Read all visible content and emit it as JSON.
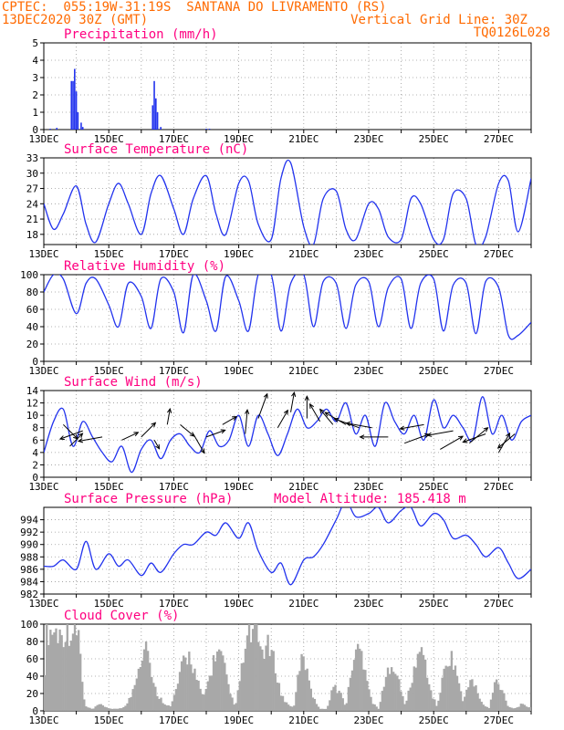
{
  "header": {
    "line1": "CPTEC:  055:19W-31:19S  SANTANA DO LIVRAMENTO (RS)",
    "line2_left": "13DEC2020 30Z (GMT)",
    "line2_right": "Vertical Grid Line: 30Z",
    "line3_right": "TQ0126L028"
  },
  "x_categories": [
    "13DEC",
    "15DEC",
    "17DEC",
    "19DEC",
    "21DEC",
    "23DEC",
    "25DEC",
    "27DEC"
  ],
  "x_range_days": [
    0,
    15
  ],
  "colors": {
    "header": "#ff6a00",
    "title": "#ff0080",
    "line": "#2233ee",
    "cloud": "#a8a8a8",
    "grid": "#9a9a9a"
  },
  "chart_data": [
    {
      "id": "precip",
      "type": "bar",
      "title": "Precipitation (mm/h)",
      "ylim": [
        0,
        5
      ],
      "yticks": [
        0,
        1,
        2,
        3,
        4,
        5
      ],
      "x_day": [
        0.2,
        0.4,
        0.85,
        0.9,
        0.95,
        1.0,
        1.05,
        1.15,
        1.2,
        3.35,
        3.4,
        3.45,
        3.5,
        3.6,
        5.0,
        5.1
      ],
      "values": [
        0.05,
        0.1,
        2.8,
        2.8,
        3.5,
        2.2,
        1.0,
        0.4,
        0.15,
        1.4,
        2.8,
        1.8,
        1.0,
        0.15,
        0.05,
        0.05
      ]
    },
    {
      "id": "temp",
      "type": "line",
      "title": "Surface Temperature (nC)",
      "ylim": [
        16,
        33
      ],
      "yticks": [
        18,
        21,
        24,
        27,
        30,
        33
      ],
      "x_day": [
        0.0,
        0.3,
        0.6,
        1.0,
        1.3,
        1.6,
        2.0,
        2.3,
        2.6,
        3.0,
        3.3,
        3.6,
        4.0,
        4.3,
        4.6,
        5.0,
        5.3,
        5.6,
        6.0,
        6.3,
        6.6,
        7.0,
        7.3,
        7.6,
        8.0,
        8.3,
        8.6,
        9.0,
        9.3,
        9.6,
        10.0,
        10.3,
        10.6,
        11.0,
        11.3,
        11.6,
        12.0,
        12.3,
        12.6,
        13.0,
        13.3,
        13.6,
        14.0,
        14.3,
        14.6,
        15.0
      ],
      "values": [
        24.0,
        19.0,
        22.0,
        27.5,
        20.0,
        16.5,
        24.0,
        28.0,
        24.0,
        18.0,
        26.0,
        29.5,
        23.0,
        18.0,
        25.0,
        29.5,
        22.0,
        18.0,
        28.0,
        28.5,
        20.0,
        17.0,
        29.0,
        32.0,
        19.5,
        16.0,
        25.0,
        26.5,
        19.0,
        17.0,
        24.0,
        23.0,
        17.5,
        17.0,
        25.0,
        24.0,
        17.0,
        17.0,
        26.0,
        25.0,
        16.0,
        17.5,
        28.0,
        28.5,
        18.5,
        29.0
      ]
    },
    {
      "id": "rh",
      "type": "line",
      "title": "Relative Humidity (%)",
      "ylim": [
        0,
        100
      ],
      "yticks": [
        0,
        20,
        40,
        60,
        80,
        100
      ],
      "x_day": [
        0.0,
        0.3,
        0.6,
        1.0,
        1.3,
        1.6,
        2.0,
        2.3,
        2.6,
        3.0,
        3.3,
        3.6,
        4.0,
        4.3,
        4.6,
        5.0,
        5.3,
        5.6,
        6.0,
        6.3,
        6.6,
        7.0,
        7.3,
        7.6,
        8.0,
        8.3,
        8.6,
        9.0,
        9.3,
        9.6,
        10.0,
        10.3,
        10.6,
        11.0,
        11.3,
        11.6,
        12.0,
        12.3,
        12.6,
        13.0,
        13.3,
        13.6,
        14.0,
        14.3,
        14.6,
        15.0
      ],
      "values": [
        80.0,
        100.0,
        95.0,
        55.0,
        90.0,
        95.0,
        65.0,
        40.0,
        90.0,
        75.0,
        38.0,
        95.0,
        80.0,
        33.0,
        100.0,
        70.0,
        35.0,
        98.0,
        70.0,
        35.0,
        100.0,
        100.0,
        35.0,
        90.0,
        100.0,
        40.0,
        92.0,
        90.0,
        38.0,
        88.0,
        92.0,
        40.0,
        85.0,
        95.0,
        38.0,
        90.0,
        95.0,
        35.0,
        88.0,
        90.0,
        32.0,
        92.0,
        85.0,
        30.0,
        30.0,
        45.0
      ]
    },
    {
      "id": "wind",
      "type": "line",
      "title": "Surface Wind (m/s)",
      "ylim": [
        0,
        14
      ],
      "yticks": [
        0,
        2,
        4,
        6,
        8,
        10,
        12,
        14
      ],
      "x_day": [
        0.0,
        0.3,
        0.6,
        0.9,
        1.2,
        1.5,
        1.8,
        2.1,
        2.4,
        2.7,
        3.0,
        3.3,
        3.6,
        3.9,
        4.2,
        4.5,
        4.8,
        5.1,
        5.4,
        5.7,
        6.0,
        6.3,
        6.6,
        6.9,
        7.2,
        7.5,
        7.8,
        8.1,
        8.4,
        8.7,
        9.0,
        9.3,
        9.6,
        9.9,
        10.2,
        10.5,
        10.8,
        11.1,
        11.4,
        11.7,
        12.0,
        12.3,
        12.6,
        12.9,
        13.2,
        13.5,
        13.8,
        14.1,
        14.4,
        14.7,
        15.0
      ],
      "values": [
        4.0,
        9.0,
        11.0,
        5.0,
        9.0,
        6.5,
        4.0,
        2.5,
        5.0,
        0.8,
        4.5,
        6.0,
        3.0,
        6.0,
        7.0,
        5.0,
        4.0,
        7.5,
        5.0,
        6.0,
        10.0,
        5.0,
        10.0,
        7.0,
        3.5,
        7.0,
        11.0,
        8.0,
        9.0,
        11.0,
        9.0,
        12.0,
        7.0,
        10.0,
        5.0,
        12.0,
        9.0,
        7.0,
        10.0,
        6.0,
        12.5,
        8.0,
        10.0,
        8.0,
        6.0,
        13.0,
        7.0,
        10.0,
        6.0,
        9.0,
        10.0
      ],
      "arrows": [
        {
          "x_day": 0.6,
          "y": 8.5,
          "dir_deg": 315,
          "len": 1.0
        },
        {
          "x_day": 0.8,
          "y": 5.0,
          "dir_deg": 45,
          "len": 0.9
        },
        {
          "x_day": 1.2,
          "y": 7.5,
          "dir_deg": 200,
          "len": 1.2
        },
        {
          "x_day": 1.8,
          "y": 6.5,
          "dir_deg": 190,
          "len": 1.2
        },
        {
          "x_day": 2.4,
          "y": 6.0,
          "dir_deg": 25,
          "len": 0.9
        },
        {
          "x_day": 3.0,
          "y": 6.5,
          "dir_deg": 45,
          "len": 1.0
        },
        {
          "x_day": 3.4,
          "y": 6.0,
          "dir_deg": 300,
          "len": 0.5
        },
        {
          "x_day": 3.8,
          "y": 8.5,
          "dir_deg": 80,
          "len": 0.8
        },
        {
          "x_day": 4.2,
          "y": 8.5,
          "dir_deg": 320,
          "len": 0.9
        },
        {
          "x_day": 4.6,
          "y": 7.0,
          "dir_deg": 300,
          "len": 1.1
        },
        {
          "x_day": 5.0,
          "y": 6.5,
          "dir_deg": 20,
          "len": 1.0
        },
        {
          "x_day": 5.5,
          "y": 8.5,
          "dir_deg": 30,
          "len": 0.8
        },
        {
          "x_day": 6.2,
          "y": 7.0,
          "dir_deg": 85,
          "len": 1.2
        },
        {
          "x_day": 6.6,
          "y": 9.5,
          "dir_deg": 70,
          "len": 1.3
        },
        {
          "x_day": 7.2,
          "y": 8.0,
          "dir_deg": 60,
          "len": 1.0
        },
        {
          "x_day": 7.6,
          "y": 10.5,
          "dir_deg": 80,
          "len": 1.0
        },
        {
          "x_day": 8.1,
          "y": 9.5,
          "dir_deg": 90,
          "len": 1.1
        },
        {
          "x_day": 8.5,
          "y": 9.0,
          "dir_deg": 120,
          "len": 1.0
        },
        {
          "x_day": 8.9,
          "y": 8.5,
          "dir_deg": 130,
          "len": 1.0
        },
        {
          "x_day": 9.3,
          "y": 8.5,
          "dir_deg": 150,
          "len": 1.2
        },
        {
          "x_day": 9.7,
          "y": 8.0,
          "dir_deg": 160,
          "len": 1.3
        },
        {
          "x_day": 10.1,
          "y": 8.0,
          "dir_deg": 170,
          "len": 1.3
        },
        {
          "x_day": 10.6,
          "y": 6.5,
          "dir_deg": 180,
          "len": 1.4
        },
        {
          "x_day": 11.1,
          "y": 5.5,
          "dir_deg": 20,
          "len": 1.3
        },
        {
          "x_day": 11.7,
          "y": 8.5,
          "dir_deg": 190,
          "len": 1.2
        },
        {
          "x_day": 12.2,
          "y": 4.5,
          "dir_deg": 30,
          "len": 1.3
        },
        {
          "x_day": 12.6,
          "y": 7.5,
          "dir_deg": 190,
          "len": 1.3
        },
        {
          "x_day": 13.1,
          "y": 5.5,
          "dir_deg": 40,
          "len": 1.2
        },
        {
          "x_day": 13.6,
          "y": 7.0,
          "dir_deg": 200,
          "len": 1.2
        },
        {
          "x_day": 14.0,
          "y": 4.0,
          "dir_deg": 60,
          "len": 1.1
        },
        {
          "x_day": 14.5,
          "y": 7.0,
          "dir_deg": 220,
          "len": 1.1
        }
      ]
    },
    {
      "id": "pres",
      "type": "line",
      "title": "Surface Pressure (hPa)",
      "annotation": "Model Altitude: 185.418  m",
      "ylim": [
        982,
        996
      ],
      "yticks": [
        982,
        984,
        986,
        988,
        990,
        992,
        994
      ],
      "x_day": [
        0.0,
        0.3,
        0.6,
        1.0,
        1.3,
        1.6,
        2.0,
        2.3,
        2.6,
        3.0,
        3.3,
        3.6,
        4.0,
        4.3,
        4.6,
        5.0,
        5.3,
        5.6,
        6.0,
        6.3,
        6.6,
        7.0,
        7.3,
        7.6,
        8.0,
        8.3,
        8.6,
        9.0,
        9.3,
        9.6,
        10.0,
        10.3,
        10.6,
        11.0,
        11.3,
        11.6,
        12.0,
        12.3,
        12.6,
        13.0,
        13.3,
        13.6,
        14.0,
        14.3,
        14.6,
        15.0
      ],
      "values": [
        986.5,
        986.5,
        987.5,
        986.0,
        990.5,
        986.0,
        988.5,
        986.5,
        987.5,
        985.0,
        987.0,
        985.5,
        988.5,
        990.0,
        990.0,
        992.0,
        991.5,
        993.5,
        991.0,
        993.5,
        989.0,
        985.5,
        987.0,
        983.5,
        987.5,
        988.0,
        990.0,
        994.0,
        997.0,
        994.5,
        995.0,
        996.0,
        993.5,
        995.5,
        996.0,
        993.0,
        995.0,
        994.0,
        991.0,
        991.5,
        990.0,
        988.0,
        989.5,
        987.0,
        984.5,
        986.0
      ]
    },
    {
      "id": "cloud",
      "type": "area",
      "title": "Cloud Cover (%)",
      "ylim": [
        0,
        100
      ],
      "yticks": [
        0,
        20,
        40,
        60,
        80,
        100
      ],
      "x_day": [
        0.0,
        0.05,
        0.1,
        0.3,
        0.5,
        0.8,
        1.1,
        1.2,
        1.3,
        1.5,
        1.7,
        1.9,
        2.1,
        2.3,
        2.5,
        2.7,
        2.9,
        3.1,
        3.2,
        3.3,
        3.5,
        3.7,
        3.9,
        4.1,
        4.3,
        4.5,
        4.7,
        4.9,
        5.1,
        5.3,
        5.5,
        5.7,
        5.9,
        6.1,
        6.3,
        6.5,
        6.7,
        6.9,
        7.1,
        7.3,
        7.5,
        7.7,
        7.9,
        8.1,
        8.3,
        8.5,
        8.7,
        8.9,
        9.1,
        9.3,
        9.5,
        9.7,
        9.9,
        10.1,
        10.3,
        10.5,
        10.7,
        10.9,
        11.1,
        11.3,
        11.5,
        11.7,
        11.9,
        12.1,
        12.3,
        12.5,
        12.7,
        12.9,
        13.1,
        13.3,
        13.5,
        13.7,
        13.9,
        14.1,
        14.3,
        14.5,
        14.7,
        14.9,
        15.0
      ],
      "values": [
        0.0,
        95.0,
        98.0,
        100.0,
        95.0,
        100.0,
        95.0,
        20.0,
        5.0,
        2.0,
        8.0,
        5.0,
        2.0,
        3.0,
        5.0,
        20.0,
        55.0,
        80.0,
        88.0,
        40.0,
        20.0,
        10.0,
        5.0,
        30.0,
        62.0,
        70.0,
        40.0,
        15.0,
        42.0,
        75.0,
        65.0,
        25.0,
        5.0,
        55.0,
        95.0,
        98.0,
        75.0,
        80.0,
        60.0,
        20.0,
        8.0,
        5.0,
        65.0,
        55.0,
        15.0,
        3.0,
        2.0,
        30.0,
        25.0,
        5.0,
        60.0,
        80.0,
        55.0,
        10.0,
        3.0,
        35.0,
        65.0,
        40.0,
        8.0,
        30.0,
        72.0,
        70.0,
        25.0,
        5.0,
        45.0,
        70.0,
        50.0,
        10.0,
        40.0,
        28.0,
        8.0,
        3.0,
        38.0,
        28.0,
        5.0,
        3.0,
        8.0,
        5.0,
        5.0
      ]
    }
  ]
}
